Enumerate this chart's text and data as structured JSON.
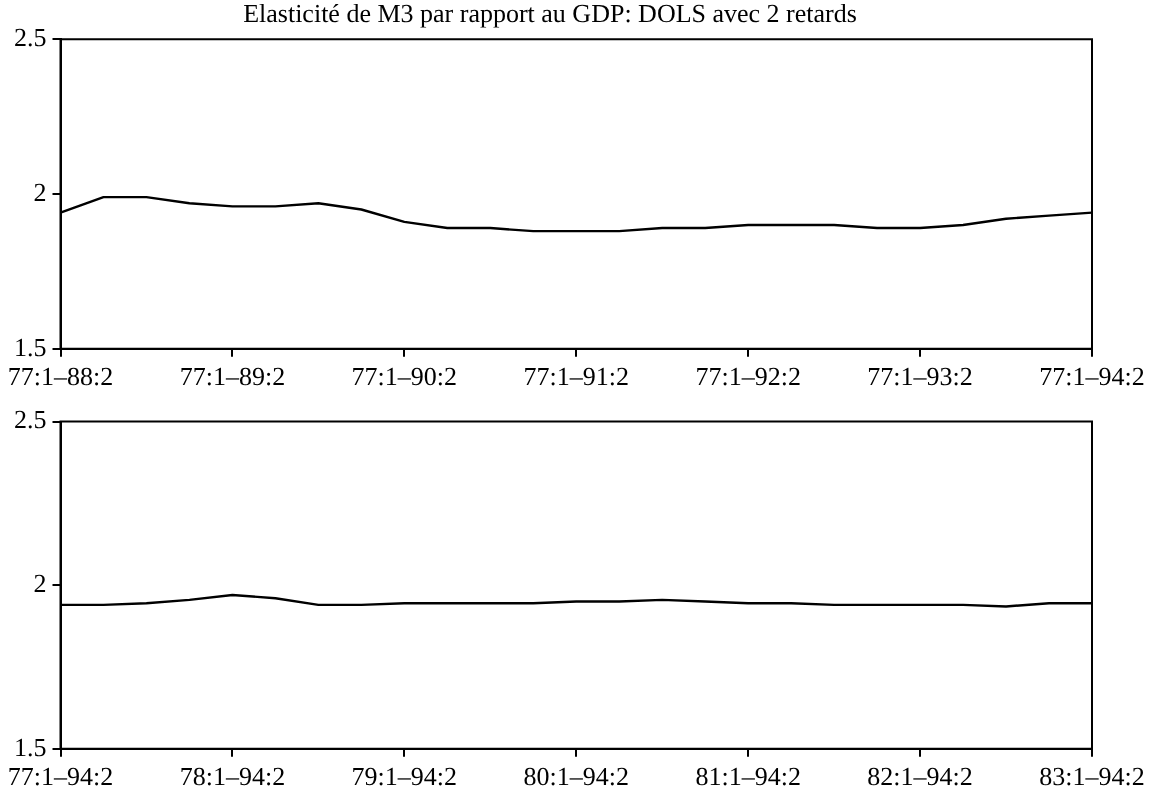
{
  "chart_data": [
    {
      "type": "line",
      "title": "Elasticité de M3 par rapport au GDP: DOLS avec 2 retards",
      "categories": [
        "77:1–88:2",
        null,
        null,
        null,
        "77:1–89:2",
        null,
        null,
        null,
        "77:1–90:2",
        null,
        null,
        null,
        "77:1–91:2",
        null,
        null,
        null,
        "77:1–92:2",
        null,
        null,
        null,
        "77:1–93:2",
        null,
        null,
        null,
        "77:1–94:2"
      ],
      "series": [
        {
          "color": "#000000",
          "values": [
            1.94,
            1.99,
            1.99,
            1.97,
            1.96,
            1.96,
            1.97,
            1.95,
            1.91,
            1.89,
            1.89,
            1.88,
            1.88,
            1.88,
            1.89,
            1.89,
            1.9,
            1.9,
            1.9,
            1.89,
            1.89,
            1.9,
            1.92,
            1.93,
            1.94
          ]
        }
      ],
      "ylim": [
        1.5,
        2.5
      ],
      "yticks": [
        1.5,
        2,
        2.5
      ]
    },
    {
      "type": "line",
      "categories": [
        "77:1–94:2",
        null,
        null,
        null,
        "78:1–94:2",
        null,
        null,
        null,
        "79:1–94:2",
        null,
        null,
        null,
        "80:1–94:2",
        null,
        null,
        null,
        "81:1–94:2",
        null,
        null,
        null,
        "82:1–94:2",
        null,
        null,
        null,
        "83:1–94:2"
      ],
      "series": [
        {
          "color": "#000000",
          "values": [
            1.94,
            1.94,
            1.945,
            1.955,
            1.97,
            1.96,
            1.94,
            1.94,
            1.945,
            1.945,
            1.945,
            1.945,
            1.95,
            1.95,
            1.955,
            1.95,
            1.945,
            1.945,
            1.94,
            1.94,
            1.94,
            1.94,
            1.935,
            1.945,
            1.945
          ]
        }
      ],
      "ylim": [
        1.5,
        2.5
      ],
      "yticks": [
        1.5,
        2,
        2.5
      ]
    }
  ]
}
